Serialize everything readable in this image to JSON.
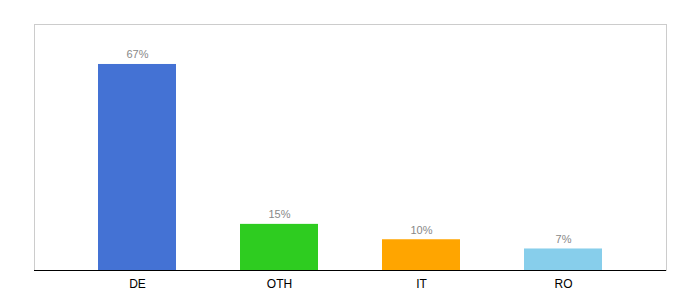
{
  "chart_data": {
    "type": "bar",
    "categories": [
      "DE",
      "OTH",
      "IT",
      "RO"
    ],
    "values": [
      67,
      15,
      10,
      7
    ],
    "value_labels": [
      "67%",
      "15%",
      "10%",
      "7%"
    ],
    "colors": [
      "#4472D4",
      "#2ECC20",
      "#FFA500",
      "#87CEEB"
    ],
    "ylim": [
      0,
      80
    ],
    "data_labels": true,
    "tick_labels": "x"
  }
}
